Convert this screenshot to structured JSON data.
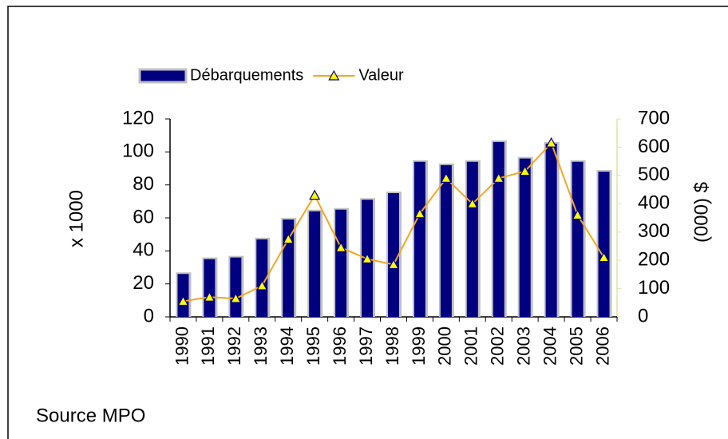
{
  "chart_data": {
    "type": "bar_line",
    "categories": [
      "1990",
      "1991",
      "1992",
      "1993",
      "1994",
      "1995",
      "1996",
      "1997",
      "1998",
      "1999",
      "2000",
      "2001",
      "2002",
      "2003",
      "2004",
      "2005",
      "2006"
    ],
    "series": [
      {
        "name": "Débarquements",
        "type": "bar",
        "color": "#000080",
        "values": [
          26,
          35,
          36,
          47,
          59,
          64,
          65,
          71,
          75,
          94,
          92,
          94,
          106,
          96,
          105,
          94,
          88
        ]
      },
      {
        "name": "Valeur",
        "type": "line",
        "axis": "y2",
        "color": "#f5a623",
        "marker_color": "#ffff00",
        "values": [
          55,
          70,
          65,
          110,
          275,
          430,
          245,
          205,
          185,
          365,
          490,
          400,
          490,
          515,
          615,
          360,
          210
        ]
      }
    ],
    "ylabel": "x 1000",
    "y2label": "(000) $",
    "ylim": [
      0,
      120
    ],
    "yticks": [
      0,
      20,
      40,
      60,
      80,
      100,
      120
    ],
    "y2lim": [
      0,
      700
    ],
    "y2ticks": [
      0,
      100,
      200,
      300,
      400,
      500,
      600,
      700
    ],
    "legend": "top",
    "source": "Source MPO"
  }
}
